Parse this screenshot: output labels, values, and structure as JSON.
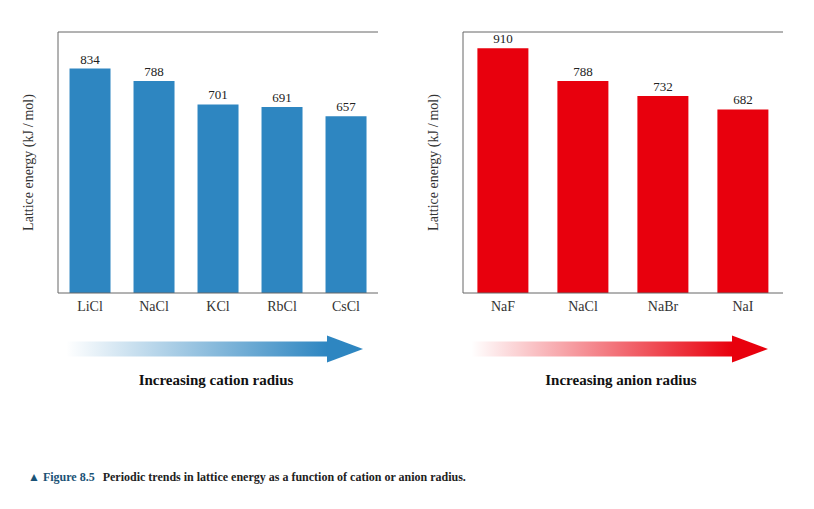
{
  "chart_data": [
    {
      "type": "bar",
      "categories": [
        "LiCl",
        "NaCl",
        "KCl",
        "RbCl",
        "CsCl"
      ],
      "values": [
        834,
        788,
        701,
        691,
        657
      ],
      "color": "#2E86C1",
      "ylim": [
        0,
        970
      ],
      "y_label": "Lattice energy (kJ / mol)",
      "x_label": "Increasing cation radius",
      "data_labels": true,
      "tick_labels": "x"
    },
    {
      "type": "bar",
      "categories": [
        "NaF",
        "NaCl",
        "NaBr",
        "NaI"
      ],
      "values": [
        910,
        788,
        732,
        682
      ],
      "color": "#E8000D",
      "ylim": [
        0,
        970
      ],
      "y_label": "Lattice energy (kJ / mol)",
      "x_label": "Increasing anion radius",
      "data_labels": true,
      "tick_labels": "x"
    }
  ],
  "caption": [
    "▲ Figure 8.5",
    "Periodic trends in lattice energy as a function of cation or anion radius."
  ]
}
